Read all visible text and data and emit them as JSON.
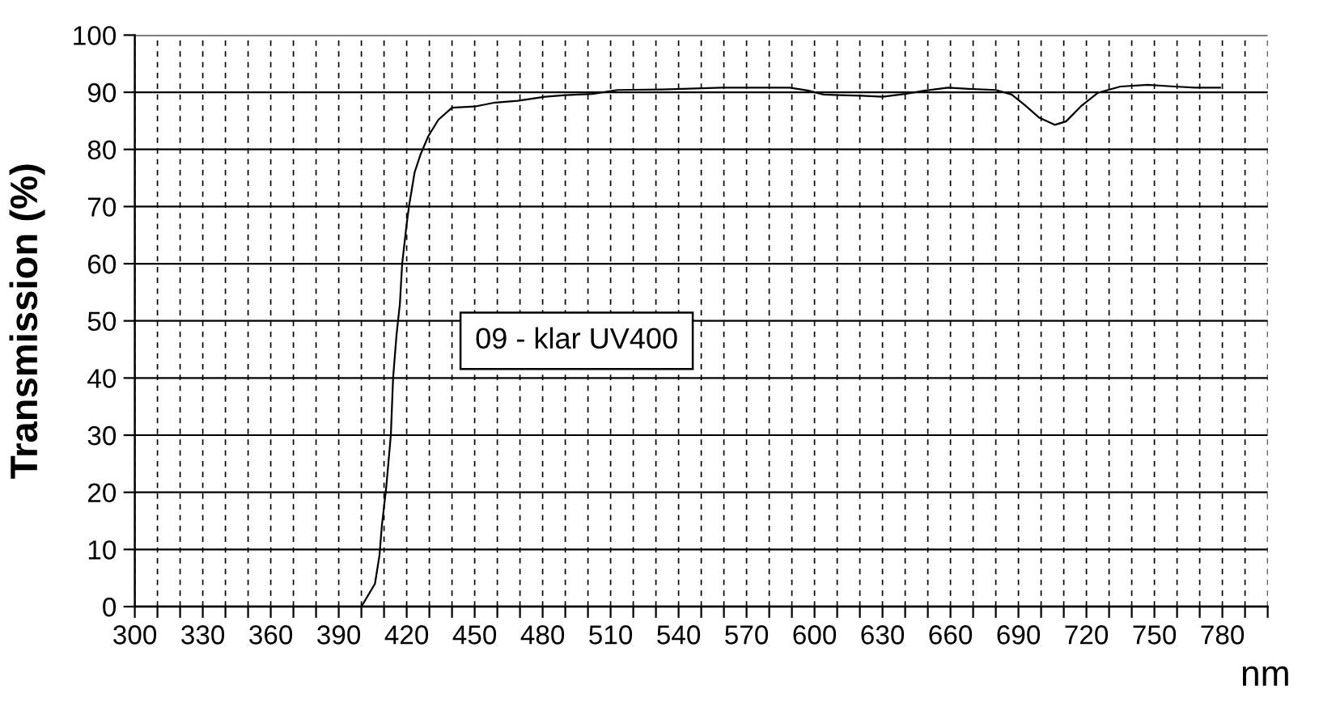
{
  "chart_data": {
    "type": "line",
    "ylabel": "Transmission (%)",
    "xlabel": "nm",
    "annotations": [
      "09 - klar UV400"
    ],
    "x": [
      400,
      403,
      406,
      408,
      409,
      411,
      413,
      414,
      415.5,
      417,
      418,
      420,
      421,
      423.5,
      426,
      429.5,
      434,
      440,
      450,
      459,
      469,
      481,
      490,
      502,
      513,
      533,
      559,
      589,
      597,
      604,
      611,
      621,
      630,
      640,
      649,
      659,
      668,
      680,
      687,
      693,
      699,
      706,
      711,
      718,
      725,
      735,
      747,
      759,
      768,
      779
    ],
    "series": [
      {
        "color": "#000000",
        "values": [
          0,
          2,
          4,
          9,
          14,
          21,
          30,
          40,
          47.5,
          53,
          60,
          67,
          70,
          76,
          79,
          82.3,
          85.2,
          87.3,
          87.5,
          88.2,
          88.5,
          89.2,
          89.5,
          89.7,
          90.4,
          90.5,
          90.8,
          90.8,
          90.3,
          89.6,
          89.5,
          89.4,
          89.2,
          89.7,
          90.3,
          90.8,
          90.6,
          90.4,
          89.6,
          87.7,
          85.6,
          84.3,
          84.9,
          87.7,
          89.9,
          91,
          91.3,
          91,
          90.8,
          90.8
        ]
      }
    ],
    "xlim": [
      300,
      800
    ],
    "ylim": [
      0,
      100
    ],
    "xticks": [
      300,
      {
        "value": 310,
        "label": null
      },
      {
        "value": 320,
        "label": null
      },
      330,
      {
        "value": 340,
        "label": null
      },
      {
        "value": 350,
        "label": null
      },
      360,
      {
        "value": 370,
        "label": null
      },
      {
        "value": 380,
        "label": null
      },
      390,
      {
        "value": 400,
        "label": null
      },
      {
        "value": 410,
        "label": null
      },
      420,
      {
        "value": 430,
        "label": null
      },
      {
        "value": 440,
        "label": null
      },
      450,
      {
        "value": 460,
        "label": null
      },
      {
        "value": 470,
        "label": null
      },
      480,
      {
        "value": 490,
        "label": null
      },
      {
        "value": 500,
        "label": null
      },
      510,
      {
        "value": 520,
        "label": null
      },
      {
        "value": 530,
        "label": null
      },
      540,
      {
        "value": 550,
        "label": null
      },
      {
        "value": 560,
        "label": null
      },
      570,
      {
        "value": 580,
        "label": null
      },
      {
        "value": 590,
        "label": null
      },
      600,
      {
        "value": 610,
        "label": null
      },
      {
        "value": 620,
        "label": null
      },
      630,
      {
        "value": 640,
        "label": null
      },
      {
        "value": 650,
        "label": null
      },
      660,
      {
        "value": 670,
        "label": null
      },
      {
        "value": 680,
        "label": null
      },
      690,
      {
        "value": 700,
        "label": null
      },
      {
        "value": 710,
        "label": null
      },
      720,
      {
        "value": 730,
        "label": null
      },
      {
        "value": 740,
        "label": null
      },
      750,
      {
        "value": 760,
        "label": null
      },
      {
        "value": 770,
        "label": null
      },
      780,
      {
        "value": 790,
        "label": null
      },
      {
        "value": 800,
        "label": null
      }
    ],
    "yticks": [
      0,
      10,
      20,
      30,
      40,
      50,
      60,
      70,
      80,
      90,
      100
    ],
    "grid": true
  }
}
